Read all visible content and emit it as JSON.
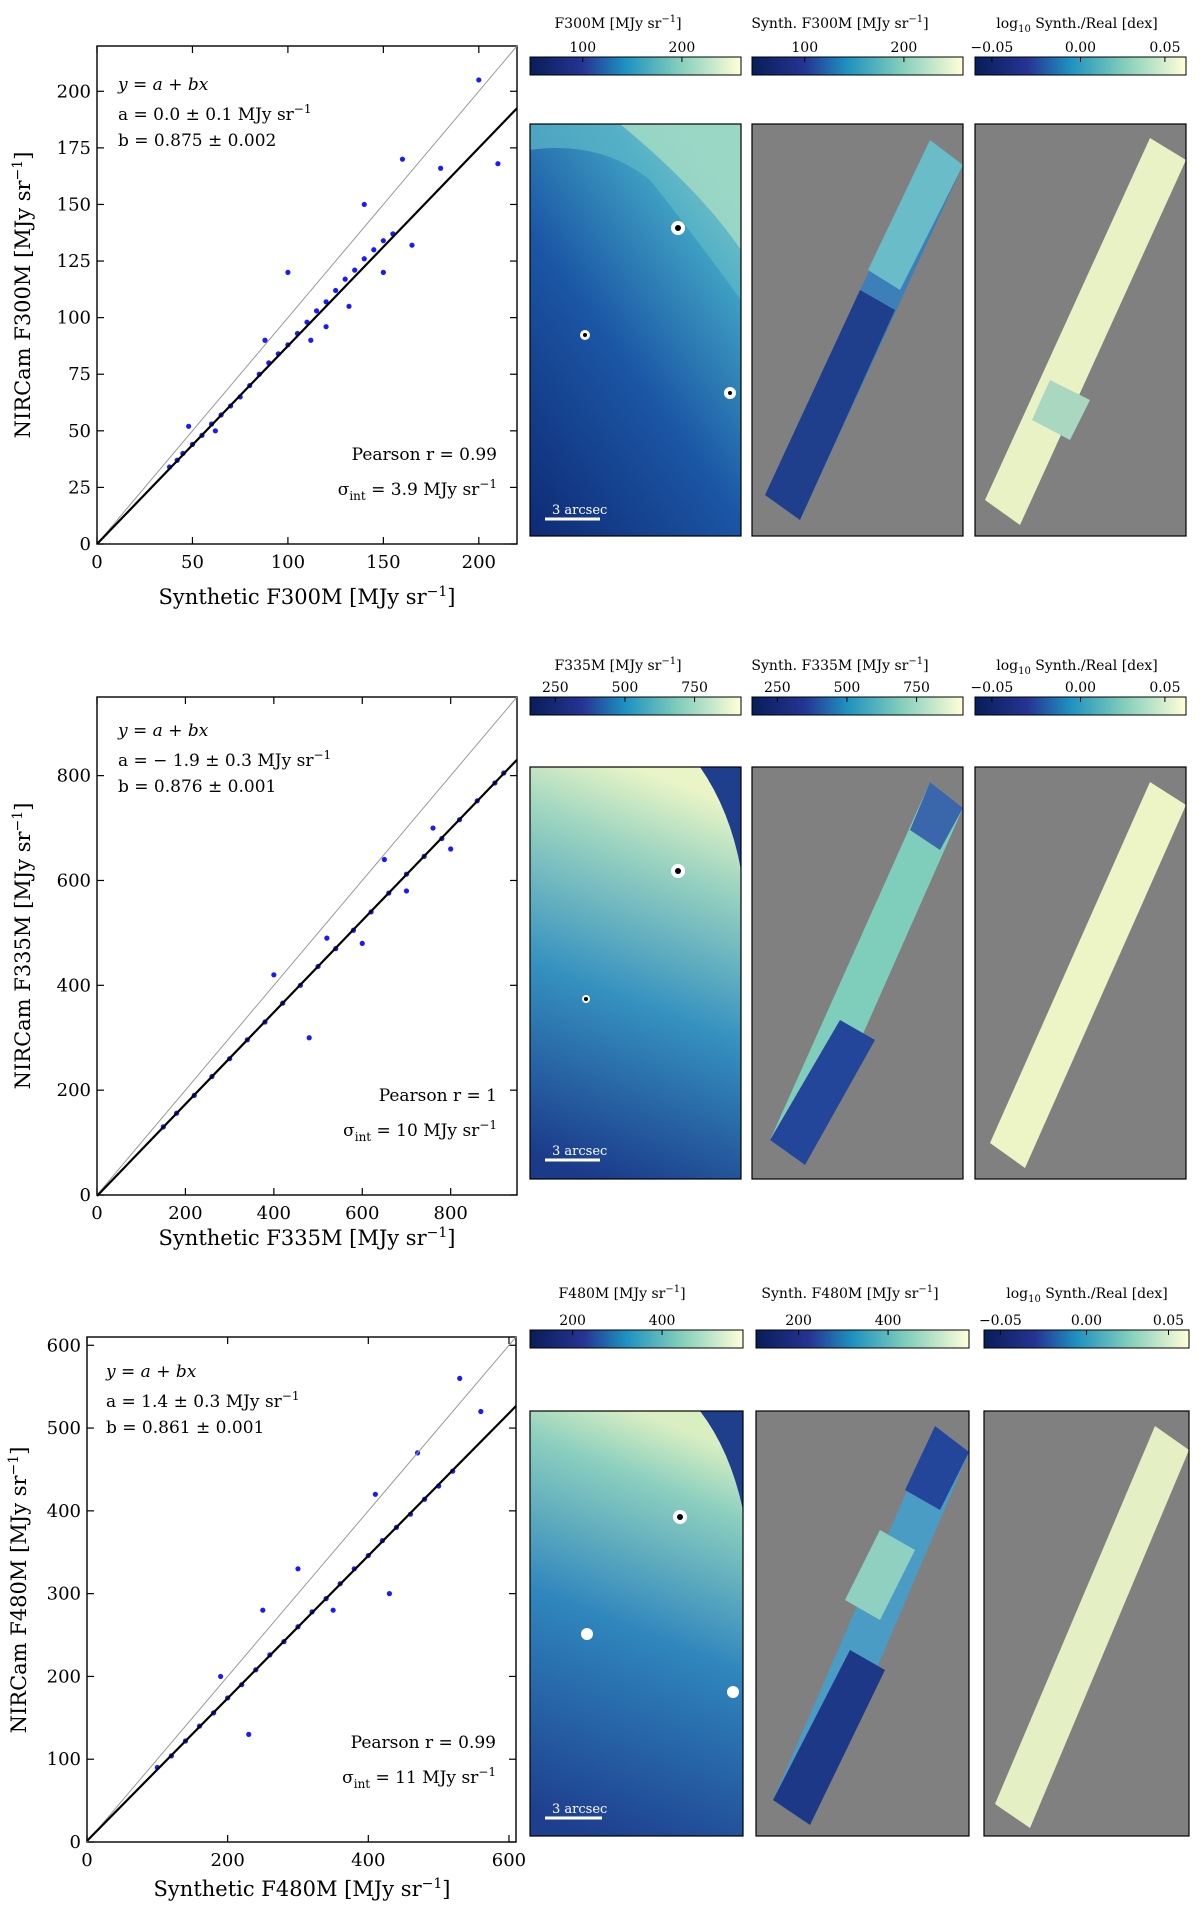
{
  "chart_data": [
    {
      "type": "scatter",
      "band": "F300M",
      "xlabel": "Synthetic F300M [MJy sr",
      "ylabel": "NIRCam F300M [MJy sr",
      "unit_exp": "−1",
      "xlim": [
        0,
        220
      ],
      "ylim": [
        0,
        220
      ],
      "xticks": [
        0,
        50,
        100,
        150,
        200
      ],
      "yticks": [
        0,
        25,
        50,
        75,
        100,
        125,
        150,
        175,
        200
      ],
      "fit": {
        "a": 0.0,
        "b": 0.875
      },
      "ann": {
        "eq": "y = a + bx",
        "a_text": "a = 0.0 ± 0.1 MJy sr",
        "b_text": "b = 0.875 ± 0.002",
        "pearson": "Pearson r = 0.99",
        "sigma": "σ",
        "sigma_sub": "int",
        "sigma_val": " = 3.9 MJy sr"
      },
      "points": [
        [
          38,
          34
        ],
        [
          42,
          37
        ],
        [
          45,
          40
        ],
        [
          50,
          44
        ],
        [
          55,
          48
        ],
        [
          60,
          53
        ],
        [
          65,
          57
        ],
        [
          70,
          61
        ],
        [
          75,
          65
        ],
        [
          80,
          70
        ],
        [
          85,
          75
        ],
        [
          90,
          80
        ],
        [
          95,
          84
        ],
        [
          100,
          88
        ],
        [
          105,
          93
        ],
        [
          110,
          98
        ],
        [
          115,
          103
        ],
        [
          120,
          107
        ],
        [
          125,
          112
        ],
        [
          130,
          117
        ],
        [
          135,
          121
        ],
        [
          140,
          126
        ],
        [
          145,
          130
        ],
        [
          150,
          134
        ],
        [
          155,
          137
        ],
        [
          100,
          120
        ],
        [
          120,
          96
        ],
        [
          140,
          150
        ],
        [
          160,
          170
        ],
        [
          180,
          166
        ],
        [
          200,
          205
        ],
        [
          210,
          168
        ],
        [
          165,
          132
        ],
        [
          48,
          52
        ],
        [
          62,
          50
        ],
        [
          88,
          90
        ],
        [
          112,
          90
        ],
        [
          132,
          105
        ],
        [
          150,
          120
        ]
      ],
      "panels": {
        "real": {
          "title": "F300M [MJy sr",
          "ticks": [
            {
              "v": 0.25,
              "t": "100"
            },
            {
              "v": 0.72,
              "t": "200"
            }
          ]
        },
        "synth": {
          "title": "Synth. F300M [MJy sr",
          "ticks": [
            {
              "v": 0.25,
              "t": "100"
            },
            {
              "v": 0.72,
              "t": "200"
            }
          ]
        },
        "ratio": {
          "title_pre": "log",
          "title_sub": "10",
          "title_post": " Synth./Real [dex]",
          "ticks": [
            {
              "v": 0.08,
              "t": "−0.05"
            },
            {
              "v": 0.5,
              "t": "0.00"
            },
            {
              "v": 0.9,
              "t": "0.05"
            }
          ]
        }
      },
      "scalebar": "3 arcsec"
    },
    {
      "type": "scatter",
      "band": "F335M",
      "xlabel": "Synthetic F335M [MJy sr",
      "ylabel": "NIRCam F335M [MJy sr",
      "unit_exp": "−1",
      "xlim": [
        0,
        950
      ],
      "ylim": [
        0,
        950
      ],
      "xticks": [
        0,
        200,
        400,
        600,
        800
      ],
      "yticks": [
        0,
        200,
        400,
        600,
        800
      ],
      "fit": {
        "a": -1.9,
        "b": 0.876
      },
      "ann": {
        "eq": "y = a + bx",
        "a_text": "a = − 1.9 ± 0.3 MJy sr",
        "b_text": "b = 0.876 ± 0.001",
        "pearson": "Pearson r = 1",
        "sigma": "σ",
        "sigma_sub": "int",
        "sigma_val": " = 10 MJy sr"
      },
      "points": [
        [
          150,
          130
        ],
        [
          180,
          156
        ],
        [
          220,
          190
        ],
        [
          260,
          226
        ],
        [
          300,
          260
        ],
        [
          340,
          296
        ],
        [
          380,
          330
        ],
        [
          420,
          366
        ],
        [
          460,
          400
        ],
        [
          500,
          436
        ],
        [
          540,
          470
        ],
        [
          580,
          505
        ],
        [
          620,
          540
        ],
        [
          660,
          576
        ],
        [
          700,
          612
        ],
        [
          740,
          646
        ],
        [
          780,
          680
        ],
        [
          820,
          716
        ],
        [
          860,
          752
        ],
        [
          900,
          786
        ],
        [
          920,
          805
        ],
        [
          400,
          420
        ],
        [
          480,
          300
        ],
        [
          520,
          490
        ],
        [
          600,
          480
        ],
        [
          650,
          640
        ],
        [
          700,
          580
        ],
        [
          760,
          700
        ],
        [
          800,
          660
        ]
      ],
      "panels": {
        "real": {
          "title": "F335M [MJy sr",
          "ticks": [
            {
              "v": 0.12,
              "t": "250"
            },
            {
              "v": 0.45,
              "t": "500"
            },
            {
              "v": 0.78,
              "t": "750"
            }
          ]
        },
        "synth": {
          "title": "Synth. F335M [MJy sr",
          "ticks": [
            {
              "v": 0.12,
              "t": "250"
            },
            {
              "v": 0.45,
              "t": "500"
            },
            {
              "v": 0.78,
              "t": "750"
            }
          ]
        },
        "ratio": {
          "title_pre": "log",
          "title_sub": "10",
          "title_post": " Synth./Real [dex]",
          "ticks": [
            {
              "v": 0.08,
              "t": "−0.05"
            },
            {
              "v": 0.5,
              "t": "0.00"
            },
            {
              "v": 0.9,
              "t": "0.05"
            }
          ]
        }
      },
      "scalebar": "3 arcsec"
    },
    {
      "type": "scatter",
      "band": "F480M",
      "xlabel": "Synthetic F480M [MJy sr",
      "ylabel": "NIRCam F480M [MJy sr",
      "unit_exp": "−1",
      "xlim": [
        0,
        610
      ],
      "ylim": [
        0,
        610
      ],
      "xticks": [
        0,
        200,
        400,
        600
      ],
      "yticks": [
        0,
        100,
        200,
        300,
        400,
        500,
        600
      ],
      "fit": {
        "a": 1.4,
        "b": 0.861
      },
      "ann": {
        "eq": "y = a + bx",
        "a_text": "a = 1.4 ± 0.3 MJy sr",
        "b_text": "b = 0.861 ± 0.001",
        "pearson": "Pearson r = 0.99",
        "sigma": "σ",
        "sigma_sub": "int",
        "sigma_val": " = 11 MJy sr"
      },
      "points": [
        [
          100,
          90
        ],
        [
          120,
          104
        ],
        [
          140,
          122
        ],
        [
          160,
          140
        ],
        [
          180,
          156
        ],
        [
          200,
          174
        ],
        [
          220,
          190
        ],
        [
          240,
          208
        ],
        [
          260,
          226
        ],
        [
          280,
          242
        ],
        [
          300,
          260
        ],
        [
          320,
          278
        ],
        [
          340,
          294
        ],
        [
          360,
          312
        ],
        [
          380,
          330
        ],
        [
          400,
          346
        ],
        [
          420,
          364
        ],
        [
          440,
          380
        ],
        [
          460,
          396
        ],
        [
          480,
          414
        ],
        [
          500,
          430
        ],
        [
          520,
          448
        ],
        [
          410,
          420
        ],
        [
          300,
          330
        ],
        [
          250,
          280
        ],
        [
          350,
          280
        ],
        [
          430,
          300
        ],
        [
          530,
          560
        ],
        [
          560,
          520
        ],
        [
          470,
          470
        ],
        [
          190,
          200
        ],
        [
          230,
          130
        ]
      ],
      "panels": {
        "real": {
          "title": "F480M [MJy sr",
          "ticks": [
            {
              "v": 0.2,
              "t": "200"
            },
            {
              "v": 0.62,
              "t": "400"
            }
          ]
        },
        "synth": {
          "title": "Synth. F480M [MJy sr",
          "ticks": [
            {
              "v": 0.2,
              "t": "200"
            },
            {
              "v": 0.62,
              "t": "400"
            }
          ]
        },
        "ratio": {
          "title_pre": "log",
          "title_sub": "10",
          "title_post": " Synth./Real [dex]",
          "ticks": [
            {
              "v": 0.08,
              "t": "−0.05"
            },
            {
              "v": 0.5,
              "t": "0.00"
            },
            {
              "v": 0.9,
              "t": "0.05"
            }
          ]
        }
      },
      "scalebar": "3 arcsec"
    }
  ]
}
